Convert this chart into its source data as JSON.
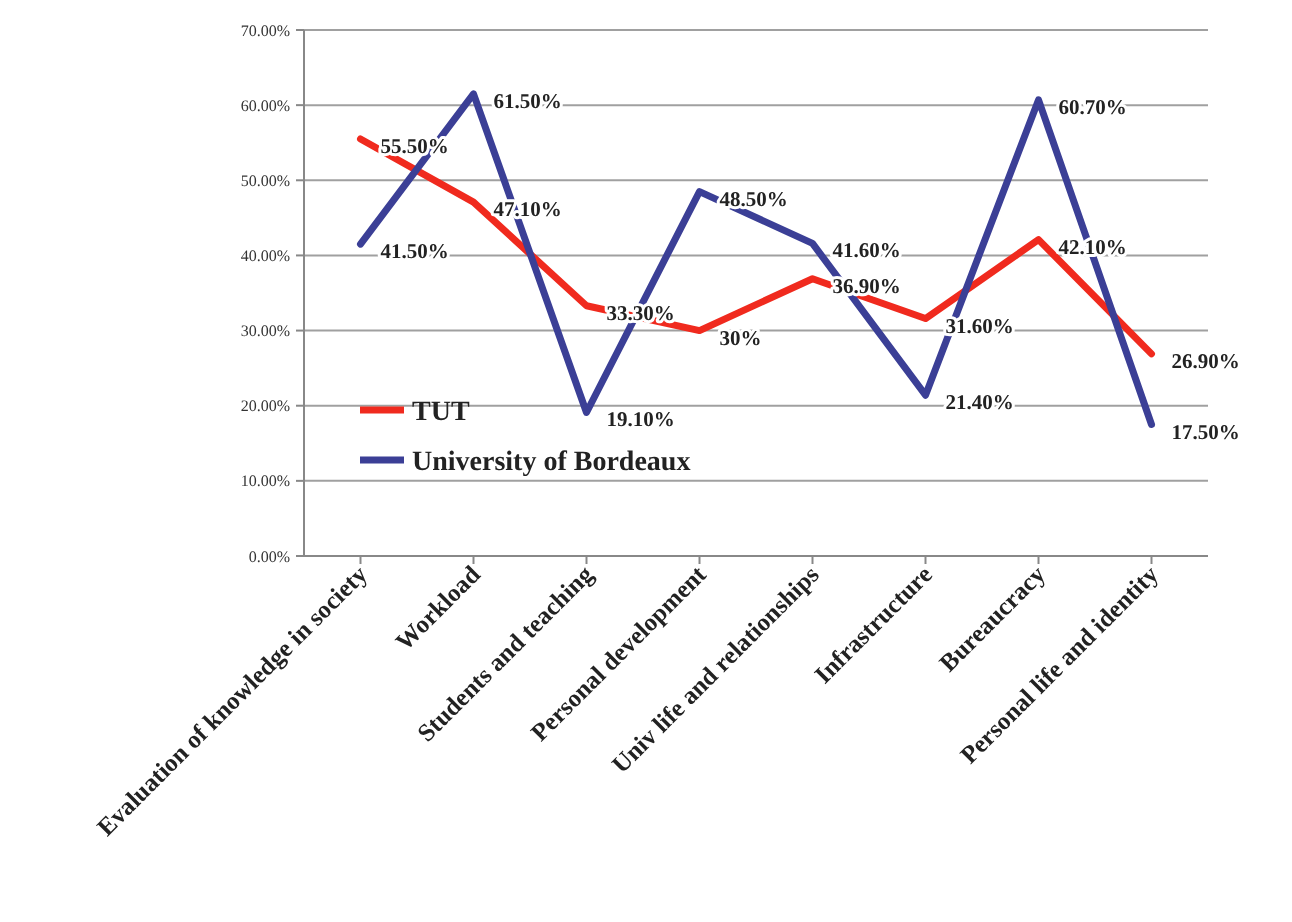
{
  "chart_data": {
    "type": "line",
    "categories": [
      "Evaluation of knowledge in society",
      "Workload",
      "Students and teaching",
      "Personal development",
      "Univ life and relationships",
      "Infrastructure",
      "Bureaucracy",
      "Personal life and identity"
    ],
    "series": [
      {
        "name": "TUT",
        "color": "#f02a1e",
        "values": [
          55.5,
          47.1,
          33.3,
          30,
          36.9,
          31.6,
          42.1,
          26.9
        ],
        "value_labels": [
          "55.50%",
          "47.10%",
          "33.30%",
          "30%",
          "36.90%",
          "31.60%",
          "42.10%",
          "26.90%"
        ]
      },
      {
        "name": "University of Bordeaux",
        "color": "#3b3f96",
        "values": [
          41.5,
          61.5,
          19.1,
          48.5,
          41.6,
          21.4,
          60.7,
          17.5
        ],
        "value_labels": [
          "41.50%",
          "61.50%",
          "19.10%",
          "48.50%",
          "41.60%",
          "21.40%",
          "60.70%",
          "17.50%"
        ]
      }
    ],
    "ylim": [
      0,
      70
    ],
    "yticks": [
      {
        "value": 0,
        "label": "0.00%"
      },
      {
        "value": 10,
        "label": "10.00%"
      },
      {
        "value": 20,
        "label": "20.00%"
      },
      {
        "value": 30,
        "label": "30.00%"
      },
      {
        "value": 40,
        "label": "40.00%"
      },
      {
        "value": 50,
        "label": "50.00%"
      },
      {
        "value": 60,
        "label": "60.00%"
      },
      {
        "value": 70,
        "label": "70.00%"
      }
    ],
    "grid": "y",
    "legend": "bottom left",
    "marker": "none",
    "line_style": "solid"
  }
}
